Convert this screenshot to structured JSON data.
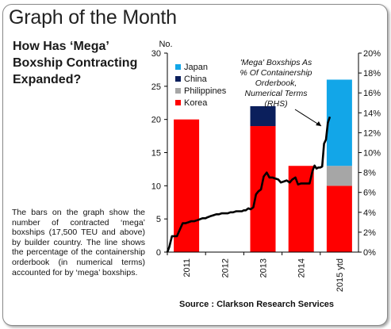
{
  "header": {
    "title": "Graph of the Month"
  },
  "subtitle": "How Has ‘Mega’ Boxship Contracting Expanded?",
  "description": "The bars on the graph show the number of contracted ‘mega’ boxships (17,500 TEU and above) by builder country. The line shows the percentage of the containership orderbook (in numerical terms) accounted for by ‘mega’ boxships.",
  "source": "Source : Clarkson Research Services",
  "chart_data": {
    "type": "bar",
    "left_axis_label": "No.",
    "categories": [
      "2011",
      "2012",
      "2013",
      "2014",
      "2015 ytd"
    ],
    "ylim": [
      0,
      30
    ],
    "yticks": [
      0,
      5,
      10,
      15,
      20,
      25,
      30
    ],
    "y2lim": [
      0,
      20
    ],
    "y2ticks": [
      "0%",
      "2%",
      "4%",
      "6%",
      "8%",
      "10%",
      "12%",
      "14%",
      "16%",
      "18%",
      "20%"
    ],
    "series": [
      {
        "name": "Korea",
        "color": "#ff0000",
        "values": [
          20,
          0,
          19,
          13,
          10
        ]
      },
      {
        "name": "Philippines",
        "color": "#a6a6a6",
        "values": [
          0,
          0,
          0,
          0,
          3
        ]
      },
      {
        "name": "China",
        "color": "#0b1f5c",
        "values": [
          0,
          0,
          3,
          0,
          0
        ]
      },
      {
        "name": "Japan",
        "color": "#12a6e8",
        "values": [
          0,
          0,
          0,
          0,
          13
        ]
      }
    ],
    "legend_order": [
      "Japan",
      "China",
      "Philippines",
      "Korea"
    ],
    "legend_position": "top-left",
    "line": {
      "axis": "right",
      "color": "#000000",
      "annotation": "'Mega' Boxships As % Of Containership Orderbook, Numerical Terms (RHS)",
      "x": [
        0,
        0.05,
        0.12,
        0.17,
        0.2,
        0.25,
        0.32,
        0.4,
        0.47,
        0.55,
        0.62,
        0.7,
        0.78,
        0.85,
        0.92,
        1.0,
        1.05,
        1.12,
        1.2,
        1.28,
        1.35,
        1.42,
        1.5,
        1.58,
        1.65,
        1.72,
        1.8,
        1.88,
        1.95,
        2.0,
        2.05,
        2.12,
        2.18,
        2.25,
        2.32,
        2.38,
        2.45,
        2.52,
        2.6,
        2.67,
        2.75,
        2.82,
        2.9,
        2.97,
        3.05,
        3.12,
        3.2,
        3.27,
        3.35,
        3.42,
        3.5,
        3.57,
        3.65,
        3.72,
        3.8,
        3.85,
        3.9,
        3.95,
        4.0,
        4.05,
        4.1,
        4.15,
        4.2,
        4.25
      ],
      "values": [
        0.0,
        0.5,
        1.6,
        1.6,
        1.6,
        1.6,
        2.2,
        2.9,
        2.9,
        3.0,
        3.1,
        3.1,
        3.2,
        3.3,
        3.4,
        3.4,
        3.5,
        3.6,
        3.7,
        3.8,
        3.8,
        3.9,
        3.9,
        3.9,
        4.0,
        4.0,
        4.1,
        4.1,
        4.1,
        4.2,
        4.2,
        4.4,
        4.3,
        4.5,
        5.8,
        6.1,
        6.3,
        7.6,
        8.0,
        7.5,
        7.5,
        7.4,
        7.3,
        7.0,
        7.1,
        7.2,
        7.0,
        7.3,
        7.5,
        6.8,
        6.9,
        6.9,
        6.9,
        6.9,
        8.2,
        8.7,
        8.4,
        8.5,
        8.5,
        8.6,
        10.9,
        11.3,
        13.0,
        13.6
      ]
    }
  }
}
